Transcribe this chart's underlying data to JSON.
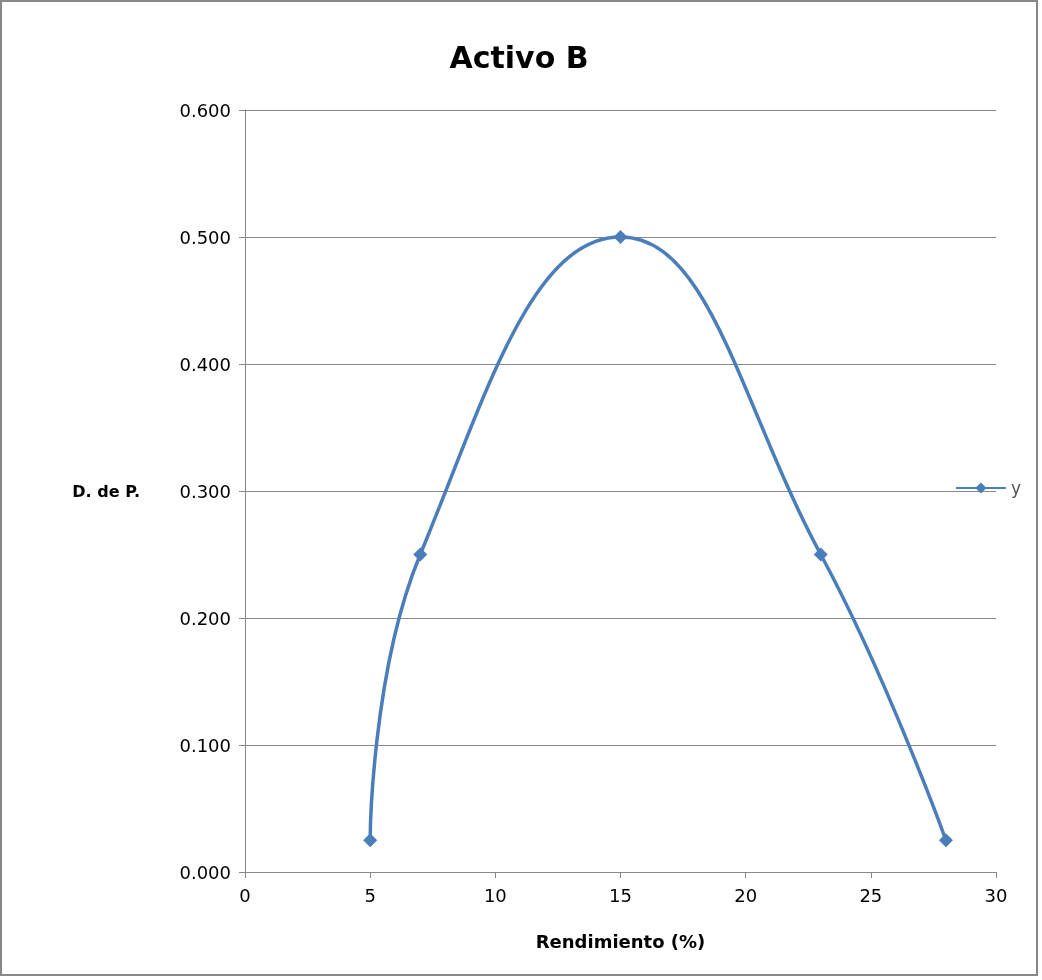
{
  "chart_data": {
    "type": "line",
    "title": "Activo B",
    "xlabel": "Rendimiento (%)",
    "ylabel": "D. de P.",
    "x": [
      5,
      7,
      15,
      23,
      28
    ],
    "series": [
      {
        "name": "y",
        "color": "#4a7ebb",
        "values": [
          0.025,
          0.25,
          0.5,
          0.25,
          0.025
        ]
      }
    ],
    "xlim": [
      0,
      30
    ],
    "xticks": [
      0,
      5,
      10,
      15,
      20,
      25,
      30
    ],
    "ylim": [
      0,
      0.6
    ],
    "yticks": [
      {
        "value": 0,
        "label": "0.000"
      },
      {
        "value": 0.1,
        "label": "0.100"
      },
      {
        "value": 0.2,
        "label": "0.200"
      },
      {
        "value": 0.3,
        "label": "0.300"
      },
      {
        "value": 0.4,
        "label": "0.400"
      },
      {
        "value": 0.5,
        "label": "0.500"
      },
      {
        "value": 0.6,
        "label": "0.600"
      }
    ],
    "grid": "y",
    "legend": "right",
    "marker": "diamond",
    "line_style": "solid"
  }
}
